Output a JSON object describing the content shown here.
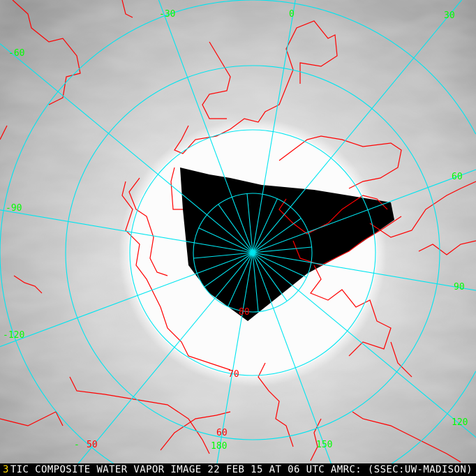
{
  "title": "TIC COMPOSITE WATER VAPOR IMAGE 22 FEB 15 AT 06 UTC AMRC: (SSEC:UW-MADISON)",
  "title_marker": "3",
  "projection": "north polar stereographic",
  "colors": {
    "coastline": "#ff0000",
    "grid": "#00e5f0",
    "longitude_labels": "#00ff00",
    "latitude_labels": "#ff0000",
    "no_data": "#000000",
    "title_marker": "#ffd800"
  },
  "longitude_labels": {
    "lon_0": "0",
    "lon_30": "30",
    "lon_60": "60",
    "lon_90": "90",
    "lon_120": "120",
    "lon_150": "150",
    "lon_180": "180",
    "lon_m30": "-30",
    "lon_m60": "-60",
    "lon_m90": "-90",
    "lon_m120": "-120",
    "lon_m150": "-"
  },
  "latitude_labels": {
    "lat_50": "50",
    "lat_60": "60",
    "lat_70": "70",
    "lat_80": "80"
  }
}
